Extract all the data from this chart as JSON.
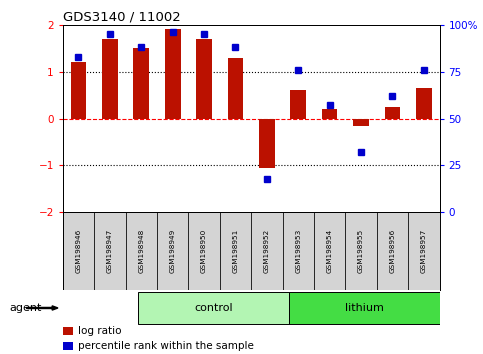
{
  "title": "GDS3140 / 11002",
  "samples": [
    "GSM198946",
    "GSM198947",
    "GSM198948",
    "GSM198949",
    "GSM198950",
    "GSM198951",
    "GSM198952",
    "GSM198953",
    "GSM198954",
    "GSM198955",
    "GSM198956",
    "GSM198957"
  ],
  "log_ratio": [
    1.2,
    1.7,
    1.5,
    1.9,
    1.7,
    1.3,
    -1.05,
    0.6,
    0.2,
    -0.15,
    0.25,
    0.65
  ],
  "percentile_rank": [
    83,
    95,
    88,
    96,
    95,
    88,
    18,
    76,
    57,
    32,
    62,
    76
  ],
  "groups": [
    {
      "label": "control",
      "start": 0,
      "end": 6,
      "color": "#b3f5b3"
    },
    {
      "label": "lithium",
      "start": 6,
      "end": 12,
      "color": "#44dd44"
    }
  ],
  "bar_color": "#bb1100",
  "dot_color": "#0000cc",
  "ylim_left": [
    -2,
    2
  ],
  "ylim_right": [
    0,
    100
  ],
  "yticks_left": [
    -2,
    -1,
    0,
    1,
    2
  ],
  "yticks_right": [
    0,
    25,
    50,
    75,
    100
  ],
  "yticklabels_right": [
    "0",
    "25",
    "50",
    "75",
    "100%"
  ],
  "hlines": [
    1,
    0,
    -1
  ],
  "hline_colors": [
    "black",
    "red",
    "black"
  ],
  "hline_styles": [
    "dotted",
    "dashed",
    "dotted"
  ],
  "background_color": "#ffffff",
  "plot_bg": "#ffffff",
  "agent_label": "agent",
  "legend_items": [
    {
      "color": "#bb1100",
      "label": "log ratio"
    },
    {
      "color": "#0000cc",
      "label": "percentile rank within the sample"
    }
  ]
}
